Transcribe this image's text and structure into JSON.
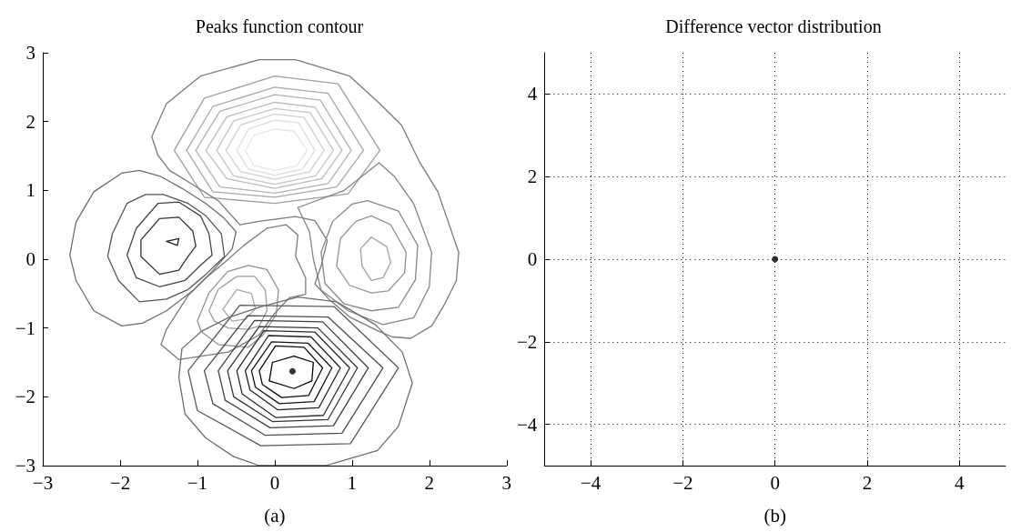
{
  "chart_data": [
    {
      "type": "scatter",
      "title": "Peaks function contour",
      "xlabel": "(a)",
      "xlim": [
        -3,
        3
      ],
      "ylim": [
        -3,
        3
      ],
      "xticks": [
        {
          "value": -3,
          "label": "−3"
        },
        {
          "value": -2,
          "label": "−2"
        },
        {
          "value": -1,
          "label": "−1"
        },
        0,
        1,
        2,
        3
      ],
      "yticks": [
        {
          "value": -3,
          "label": "−3"
        },
        {
          "value": -2,
          "label": "−2"
        },
        {
          "value": -1,
          "label": "−1"
        },
        0,
        1,
        2,
        3
      ],
      "marker": "circle",
      "series": [
        {
          "color": "#000000",
          "x": [
            0.23
          ],
          "values": [
            -1.63
          ]
        }
      ]
    },
    {
      "type": "scatter",
      "title": "Difference vector distribution",
      "xlabel": "(b)",
      "xlim": [
        -5,
        5
      ],
      "ylim": [
        -5,
        5
      ],
      "xticks": [
        {
          "value": -4,
          "label": "−4"
        },
        {
          "value": -2,
          "label": "−2"
        },
        0,
        2,
        4
      ],
      "yticks": [
        {
          "value": -4,
          "label": "−4"
        },
        {
          "value": -2,
          "label": "−2"
        },
        0,
        2,
        4
      ],
      "grid": true,
      "marker": "circle",
      "series": [
        {
          "color": "#000000",
          "x": [
            0
          ],
          "values": [
            0
          ]
        }
      ]
    }
  ]
}
